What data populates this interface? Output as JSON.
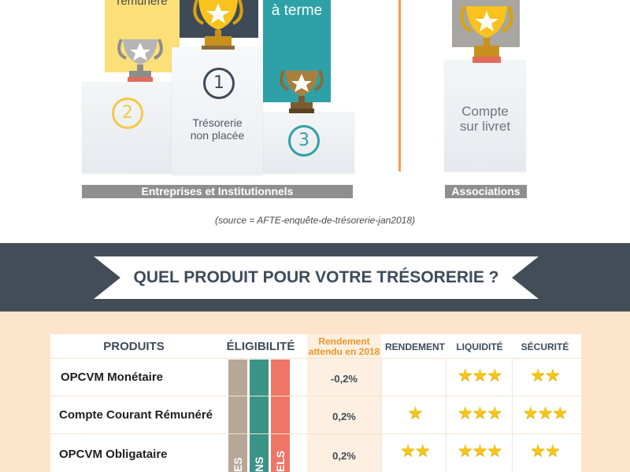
{
  "podium": {
    "card_left_text": "rémunéré",
    "card_right_text": "à terme",
    "rank_center": "1",
    "rank_left": "2",
    "rank_right": "3",
    "center_label_line1": "Trésorerie",
    "center_label_line2": "non placée",
    "assoc_label_line1": "Compte",
    "assoc_label_line2": "sur livret",
    "group_label_companies": "Entreprises et Institutionnels",
    "group_label_associations": "Associations",
    "source": "(source = AFTE-enquête-de-trésorerie-jan2018)"
  },
  "banner": {
    "title": "QUEL PRODUIT POUR VOTRE TRÉSORERIE ?"
  },
  "table": {
    "headers": {
      "produits": "PRODUITS",
      "eligibilite": "ÉLIGIBILITÉ",
      "rendement_2018_line1": "Rendement",
      "rendement_2018_line2": "attendu en 2018",
      "rendement": "RENDEMENT",
      "liquidite": "LIQUIDITÉ",
      "securite": "SÉCURITÉ"
    },
    "eligibility_fragments": [
      "ES",
      "NS",
      "ELS"
    ],
    "rows": [
      {
        "name": "OPCVM Monétaire",
        "rendement_2018": "-0,2%",
        "rendement_stars": 0,
        "liquidite_stars": 3,
        "securite_stars": 2
      },
      {
        "name": "Compte Courant Rémunéré",
        "rendement_2018": "0,2%",
        "rendement_stars": 1,
        "liquidite_stars": 3,
        "securite_stars": 3
      },
      {
        "name": "OPCVM Obligataire",
        "rendement_2018": "0,2%",
        "rendement_stars": 2,
        "liquidite_stars": 3,
        "securite_stars": 2
      }
    ]
  },
  "colors": {
    "navy": "#3d4b59",
    "yellow": "#fbe07a",
    "teal": "#2ea1a8",
    "orange": "#f0952c",
    "peach": "#fde5cc",
    "star": "#f5c518"
  }
}
